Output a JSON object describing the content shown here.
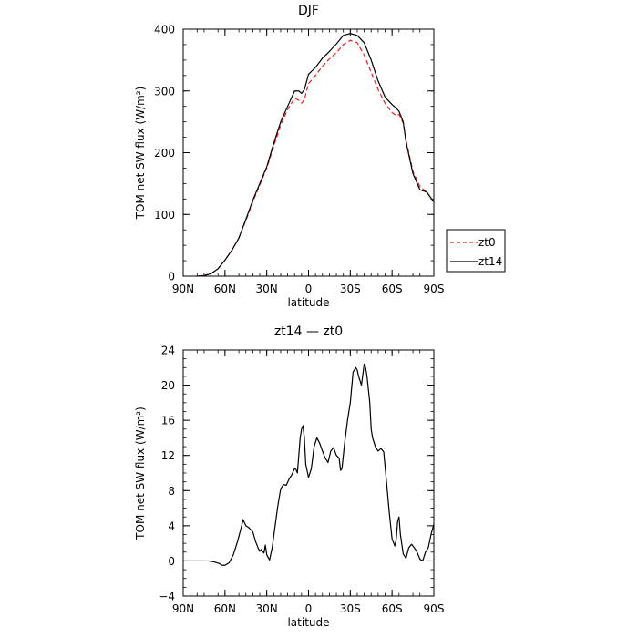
{
  "chart_data": [
    {
      "type": "line",
      "title": "DJF",
      "xlabel": "latitude",
      "ylabel": "TOM net SW flux (W/m²)",
      "xlim": [
        -90,
        90
      ],
      "ylim": [
        0,
        400
      ],
      "x_ticks": [
        -90,
        -60,
        -30,
        0,
        30,
        60,
        90
      ],
      "x_tick_labels": [
        "90N",
        "60N",
        "30N",
        "0",
        "30S",
        "60S",
        "90S"
      ],
      "y_ticks": [
        0,
        100,
        200,
        300,
        400
      ],
      "y_tick_labels": [
        "0",
        "100",
        "200",
        "300",
        "400"
      ],
      "legend_position": "outside-right",
      "series": [
        {
          "name": "zt0",
          "color": "#e8201a",
          "dash": true,
          "x": [
            -80,
            -75,
            -70,
            -65,
            -60,
            -55,
            -50,
            -45,
            -40,
            -35,
            -30,
            -25,
            -20,
            -15,
            -10,
            -7,
            -5,
            -3,
            0,
            5,
            10,
            15,
            20,
            25,
            30,
            35,
            40,
            45,
            50,
            55,
            60,
            63,
            65,
            68,
            70,
            72,
            75,
            80,
            85,
            90
          ],
          "y": [
            0,
            1,
            4,
            12,
            26,
            42,
            62,
            90,
            120,
            148,
            175,
            210,
            245,
            270,
            288,
            285,
            280,
            286,
            312,
            325,
            340,
            352,
            362,
            375,
            382,
            378,
            358,
            330,
            302,
            280,
            265,
            260,
            262,
            248,
            220,
            200,
            170,
            145,
            136,
            120
          ]
        },
        {
          "name": "zt14",
          "color": "#000000",
          "dash": false,
          "x": [
            -80,
            -75,
            -70,
            -65,
            -60,
            -55,
            -50,
            -45,
            -40,
            -35,
            -30,
            -25,
            -20,
            -15,
            -10,
            -7,
            -5,
            -3,
            0,
            5,
            10,
            15,
            20,
            25,
            30,
            35,
            40,
            45,
            50,
            55,
            60,
            63,
            65,
            68,
            70,
            72,
            75,
            80,
            85,
            90
          ],
          "y": [
            0,
            1,
            4,
            12,
            26,
            42,
            62,
            92,
            123,
            150,
            177,
            215,
            250,
            275,
            300,
            300,
            296,
            302,
            327,
            338,
            353,
            364,
            376,
            390,
            393,
            390,
            378,
            350,
            316,
            290,
            278,
            272,
            267,
            250,
            218,
            197,
            166,
            140,
            136,
            120
          ]
        }
      ]
    },
    {
      "type": "line",
      "title": "zt14 — zt0",
      "xlabel": "latitude",
      "ylabel": "TOM net SW flux (W/m²)",
      "xlim": [
        -90,
        90
      ],
      "ylim": [
        -4,
        24
      ],
      "x_ticks": [
        -90,
        -60,
        -30,
        0,
        30,
        60,
        90
      ],
      "x_tick_labels": [
        "90N",
        "60N",
        "30N",
        "0",
        "30S",
        "60S",
        "90S"
      ],
      "y_ticks": [
        -4,
        0,
        4,
        8,
        12,
        16,
        20,
        24
      ],
      "y_tick_labels": [
        "−4",
        "0",
        "4",
        "8",
        "12",
        "16",
        "20",
        "24"
      ],
      "series": [
        {
          "color": "#000000",
          "x": [
            -90,
            -80,
            -72,
            -68,
            -64,
            -62,
            -60,
            -57,
            -54,
            -51,
            -48,
            -47,
            -45,
            -43,
            -40,
            -38,
            -36,
            -35,
            -34,
            -32,
            -31,
            -30,
            -28,
            -26,
            -24,
            -22,
            -20,
            -18,
            -16,
            -14,
            -12,
            -10,
            -9,
            -8,
            -6,
            -5,
            -4,
            -3,
            -2,
            0,
            2,
            4,
            6,
            7,
            8,
            10,
            12,
            14,
            16,
            18,
            20,
            22,
            23,
            24,
            26,
            28,
            30,
            32,
            34,
            35,
            36,
            38,
            40,
            41,
            42,
            44,
            45,
            46,
            48,
            50,
            52,
            54,
            56,
            58,
            60,
            62,
            63,
            64,
            65,
            66,
            68,
            70,
            72,
            74,
            76,
            78,
            80,
            82,
            84,
            86,
            88,
            90
          ],
          "y": [
            0,
            0,
            0,
            -0.1,
            -0.3,
            -0.5,
            -0.5,
            -0.2,
            0.7,
            2.2,
            4,
            4.7,
            4,
            3.8,
            3.3,
            2.2,
            1.4,
            1.1,
            1.3,
            0.9,
            1.8,
            0.7,
            0.1,
            1.6,
            4,
            6.3,
            8.2,
            8.7,
            8.6,
            9.3,
            9.8,
            10.5,
            10.4,
            10,
            14,
            15,
            15.4,
            14,
            11,
            9.5,
            10.5,
            13,
            14,
            13.7,
            13.4,
            12.5,
            11.7,
            11.2,
            12.5,
            12.9,
            12,
            11.7,
            10.3,
            10.5,
            13.5,
            16,
            18,
            21.5,
            22,
            21.7,
            21,
            20,
            22.4,
            22,
            21,
            18,
            15,
            14,
            13,
            12.5,
            12.8,
            12.4,
            9,
            5.5,
            2.5,
            1.7,
            2.5,
            4.5,
            5,
            3,
            0.8,
            0.3,
            1.5,
            1.9,
            1.5,
            1,
            0.2,
            0,
            1,
            1.5,
            3,
            4.2
          ]
        }
      ]
    }
  ],
  "legend": {
    "items": [
      {
        "label": "zt0",
        "color": "#e8201a",
        "dash": true
      },
      {
        "label": "zt14",
        "color": "#000000",
        "dash": false
      }
    ]
  }
}
